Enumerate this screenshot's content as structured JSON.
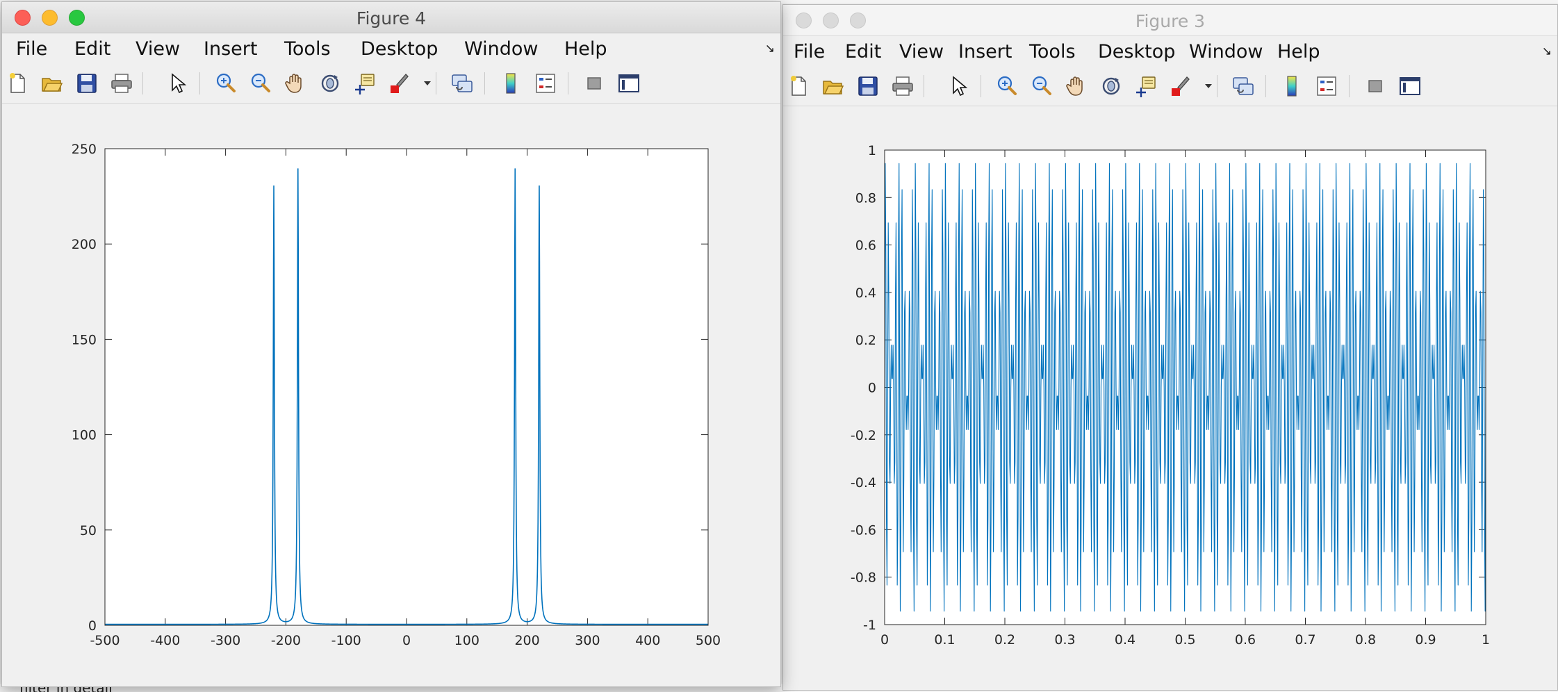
{
  "desktop": {
    "bottom_text": "filter in detail"
  },
  "windows": [
    {
      "id": "fig4",
      "title": "Figure 4",
      "active": true,
      "menu": [
        "File",
        "Edit",
        "View",
        "Insert",
        "Tools",
        "Desktop",
        "Window",
        "Help"
      ],
      "menu_corner_icon": "dock-arrow-icon",
      "toolbar": [
        "new-figure-icon",
        "open-file-icon",
        "save-icon",
        "print-icon",
        "pointer-icon",
        "zoom-in-icon",
        "zoom-out-icon",
        "pan-hand-icon",
        "rotate-3d-icon",
        "data-cursor-icon",
        "brush-icon",
        "brush-dropdown-icon",
        "link-plot-icon",
        "colorbar-icon",
        "legend-icon",
        "hide-plot-tools-icon",
        "show-plot-tools-icon"
      ],
      "chart_data": {
        "type": "line",
        "xlim": [
          -500,
          500
        ],
        "ylim": [
          0,
          250
        ],
        "xticks": [
          -500,
          -400,
          -300,
          -200,
          -100,
          0,
          100,
          200,
          300,
          400,
          500
        ],
        "yticks": [
          0,
          50,
          100,
          150,
          200,
          250
        ],
        "grid": false,
        "line_color": "#0072bd",
        "peaks": [
          {
            "x": -220,
            "y": 230
          },
          {
            "x": -180,
            "y": 239
          },
          {
            "x": 180,
            "y": 239
          },
          {
            "x": 220,
            "y": 230
          }
        ],
        "baseline": 0.5
      }
    },
    {
      "id": "fig3",
      "title": "Figure 3",
      "active": false,
      "menu": [
        "File",
        "Edit",
        "View",
        "Insert",
        "Tools",
        "Desktop",
        "Window",
        "Help"
      ],
      "menu_corner_icon": "dock-arrow-icon",
      "toolbar": [
        "new-figure-icon",
        "open-file-icon",
        "save-icon",
        "print-icon",
        "pointer-icon",
        "zoom-in-icon",
        "zoom-out-icon",
        "pan-hand-icon",
        "rotate-3d-icon",
        "data-cursor-icon",
        "brush-icon",
        "brush-dropdown-icon",
        "link-plot-icon",
        "colorbar-icon",
        "legend-icon",
        "hide-plot-tools-icon",
        "show-plot-tools-icon"
      ],
      "chart_data": {
        "type": "line",
        "xlim": [
          0,
          1
        ],
        "ylim": [
          -1,
          1
        ],
        "xticks": [
          0,
          0.1,
          0.2,
          0.3,
          0.4,
          0.5,
          0.6,
          0.7,
          0.8,
          0.9,
          1
        ],
        "yticks": [
          -1,
          -0.8,
          -0.6,
          -0.4,
          -0.2,
          0,
          0.2,
          0.4,
          0.6,
          0.8,
          1
        ],
        "grid": false,
        "line_color": "#0072bd",
        "signal": {
          "components": [
            {
              "amplitude": 0.5,
              "frequency_hz": 180
            },
            {
              "amplitude": 0.5,
              "frequency_hz": 220
            }
          ],
          "sample_rate_hz": 1000,
          "t_start": 0,
          "t_end": 1
        }
      }
    }
  ]
}
